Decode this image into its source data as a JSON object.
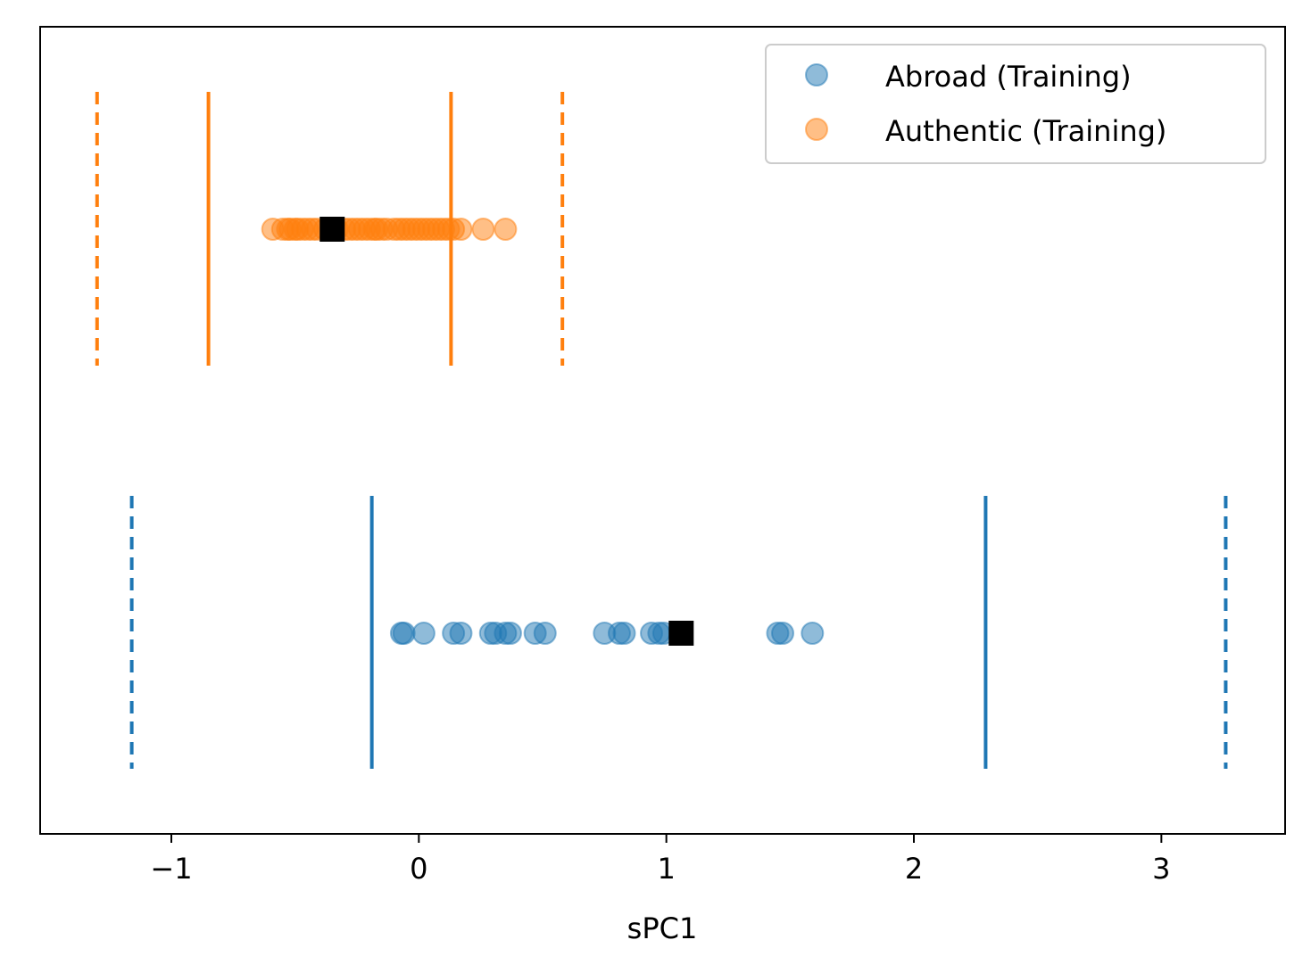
{
  "chart_data": {
    "type": "scatter",
    "title": "",
    "xlabel": "sPC1",
    "ylabel": "",
    "xlim": [
      -1.53,
      3.5
    ],
    "xticks": [
      -1,
      0,
      1,
      2,
      3
    ],
    "xtick_labels": [
      "−1",
      "0",
      "1",
      "2",
      "3"
    ],
    "grid": false,
    "legend_position": "top-right",
    "series": [
      {
        "name": "Abroad (Training)",
        "color": "#1f77b4",
        "row": "bottom",
        "x": [
          -0.07,
          -0.06,
          0.02,
          0.14,
          0.17,
          0.29,
          0.31,
          0.35,
          0.37,
          0.47,
          0.51,
          0.75,
          0.81,
          0.83,
          0.94,
          0.97,
          0.99,
          1.45,
          1.47,
          1.59
        ],
        "mean": 1.06,
        "limits_solid": [
          -0.19,
          2.29
        ],
        "limits_dashed": [
          -1.16,
          3.26
        ]
      },
      {
        "name": "Authentic (Training)",
        "color": "#ff7f0e",
        "row": "top",
        "x": [
          -0.59,
          -0.55,
          -0.53,
          -0.52,
          -0.5,
          -0.49,
          -0.47,
          -0.45,
          -0.43,
          -0.41,
          -0.38,
          -0.35,
          -0.33,
          -0.3,
          -0.28,
          -0.26,
          -0.24,
          -0.22,
          -0.2,
          -0.18,
          -0.17,
          -0.15,
          -0.13,
          -0.1,
          -0.08,
          -0.06,
          -0.04,
          -0.02,
          0.0,
          0.02,
          0.04,
          0.06,
          0.08,
          0.1,
          0.12,
          0.14,
          0.17,
          0.26,
          0.35
        ],
        "mean": -0.35,
        "limits_solid": [
          -0.85,
          0.13
        ],
        "limits_dashed": [
          -1.3,
          0.58
        ]
      }
    ]
  }
}
